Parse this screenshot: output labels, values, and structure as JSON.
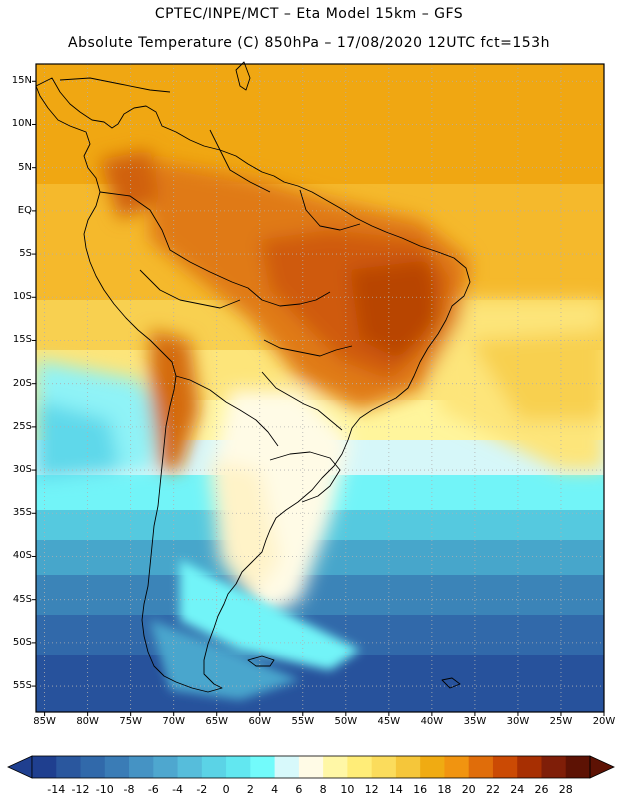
{
  "header": {
    "line1": "CPTEC/INPE/MCT –  Eta Model 15km – GFS",
    "line2": "Absolute Temperature (C) 850hPa – 17/08/2020 12UTC fct=153h"
  },
  "axes": {
    "lat_labels": [
      "15N",
      "10N",
      "5N",
      "EQ",
      "5S",
      "10S",
      "15S",
      "20S",
      "25S",
      "30S",
      "35S",
      "40S",
      "45S",
      "50S",
      "55S"
    ],
    "lat_values": [
      15,
      10,
      5,
      0,
      -5,
      -10,
      -15,
      -20,
      -25,
      -30,
      -35,
      -40,
      -45,
      -50,
      -55
    ],
    "lon_labels": [
      "85W",
      "80W",
      "75W",
      "70W",
      "65W",
      "60W",
      "55W",
      "50W",
      "45W",
      "40W",
      "35W",
      "30W",
      "25W",
      "20W"
    ],
    "lon_values": [
      -85,
      -80,
      -75,
      -70,
      -65,
      -60,
      -55,
      -50,
      -45,
      -40,
      -35,
      -30,
      -25,
      -20
    ],
    "lat_range": [
      -58,
      17
    ],
    "lon_range": [
      -86,
      -20
    ],
    "grid": "dotted"
  },
  "colorbar": {
    "labels": [
      "-14",
      "-12",
      "-10",
      "-8",
      "-6",
      "-4",
      "-2",
      "0",
      "2",
      "4",
      "6",
      "8",
      "10",
      "12",
      "14",
      "16",
      "18",
      "20",
      "22",
      "24",
      "26",
      "28"
    ],
    "colors": [
      "#1f3f8f",
      "#2a579e",
      "#3169aa",
      "#3a7cb6",
      "#4593c4",
      "#4ea7cf",
      "#56bddb",
      "#5bd3e6",
      "#62e7f0",
      "#72fbfb",
      "#d7f9fb",
      "#fffbe6",
      "#fff7a6",
      "#ffed78",
      "#fbdc5c",
      "#f5c63a",
      "#f0ab12",
      "#f19410",
      "#e06d0a",
      "#cb4a04",
      "#a72f02",
      "#7f1e08",
      "#5d1204"
    ]
  }
}
